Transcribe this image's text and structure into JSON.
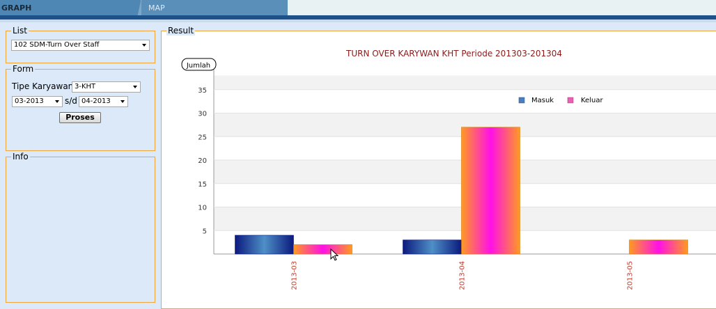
{
  "tabs": [
    {
      "label": "GRAPH",
      "active": true
    },
    {
      "label": "MAP",
      "active": false
    }
  ],
  "list_panel": {
    "legend": "List",
    "selected": "102 SDM-Turn Over Staff"
  },
  "form_panel": {
    "legend": "Form",
    "tipe_label": "Tipe Karyawan",
    "tipe_value": "3-KHT",
    "from_value": "03-2013",
    "sd_label": "s/d",
    "to_value": "04-2013",
    "proses_label": "Proses"
  },
  "info_panel": {
    "legend": "Info"
  },
  "result_panel": {
    "legend": "Result"
  },
  "chart_data": {
    "type": "bar",
    "title": "TURN OVER KARYWAN  KHT Periode 201303-201304",
    "ylabel": "Jumlah",
    "xlabel": "",
    "categories": [
      "2013-03",
      "2013-04",
      "2013-05"
    ],
    "series": [
      {
        "name": "Masuk",
        "values": [
          4,
          3,
          0
        ]
      },
      {
        "name": "Keluar",
        "values": [
          2,
          27,
          3
        ]
      }
    ],
    "yticks": [
      5,
      10,
      15,
      20,
      25,
      30,
      35
    ],
    "ylim": [
      0,
      38
    ],
    "legend_position": "top-right",
    "colors": {
      "masuk": "#4a7fbf",
      "keluar": "#e85fb4",
      "title": "#8b1a1a",
      "xtick": "#c0392b"
    }
  }
}
